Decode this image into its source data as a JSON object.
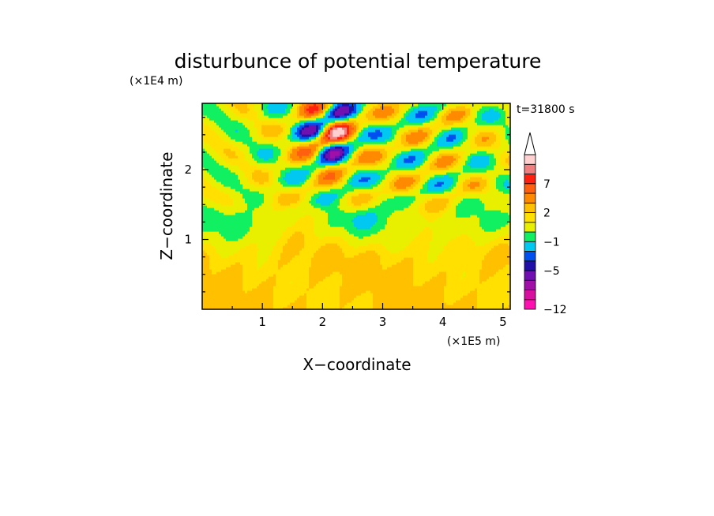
{
  "chart_data": {
    "type": "heatmap",
    "title": "disturbunce of potential temperature",
    "time_label": "t=31800 s",
    "xlabel": "X−coordinate",
    "ylabel": "Z−coordinate",
    "x_unit": "(×1E5 m)",
    "y_unit": "(×1E4 m)",
    "xlim": [
      0,
      5.12
    ],
    "ylim": [
      0,
      2.95
    ],
    "x_ticks": [
      {
        "value": 1,
        "label": "1"
      },
      {
        "value": 2,
        "label": "2"
      },
      {
        "value": 3,
        "label": "3"
      },
      {
        "value": 4,
        "label": "4"
      },
      {
        "value": 5,
        "label": "5"
      }
    ],
    "y_ticks": [
      {
        "value": 1,
        "label": "1"
      },
      {
        "value": 2,
        "label": "2"
      }
    ],
    "colorbar": {
      "colors": [
        "#ff10b0",
        "#d810a0",
        "#a010a8",
        "#7010b0",
        "#2010a8",
        "#0050f0",
        "#00c8f0",
        "#10f060",
        "#e8f000",
        "#ffe000",
        "#ffc000",
        "#ff8a00",
        "#ff6010",
        "#ff2010",
        "#f08080",
        "#ffd0d0"
      ],
      "labels": [
        {
          "level": 0,
          "text": "−12"
        },
        {
          "level": 4,
          "text": "−5"
        },
        {
          "level": 7,
          "text": "−1"
        },
        {
          "level": 10,
          "text": "2"
        },
        {
          "level": 13,
          "text": "7"
        }
      ],
      "extend_top": true
    }
  }
}
